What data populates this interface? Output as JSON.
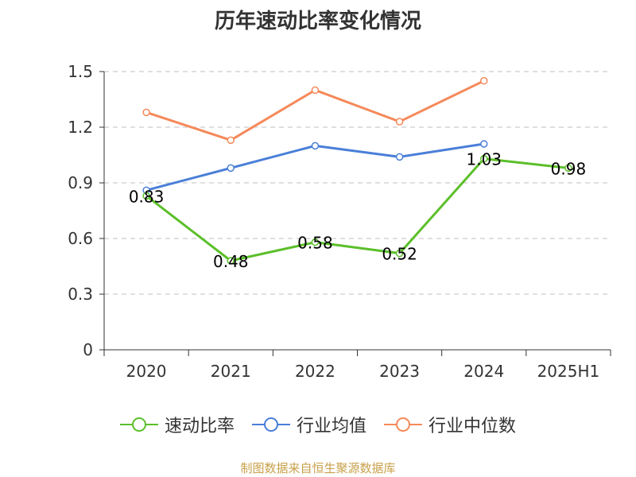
{
  "chart_data": {
    "type": "line",
    "title": "历年速动比率变化情况",
    "categories": [
      "2020",
      "2021",
      "2022",
      "2023",
      "2024",
      "2025H1"
    ],
    "y_ticks": [
      "0",
      "0.3",
      "0.6",
      "0.9",
      "1.2",
      "1.5"
    ],
    "ylim": [
      0,
      1.5
    ],
    "grid": true,
    "legend_position": "bottom",
    "series": [
      {
        "name": "速动比率",
        "color": "#5bbf2a",
        "values": [
          0.83,
          0.48,
          0.58,
          0.52,
          1.03,
          0.98
        ],
        "labels": [
          "0.83",
          "0.48",
          "0.58",
          "0.52",
          "1.03",
          "0.98"
        ]
      },
      {
        "name": "行业均值",
        "color": "#4a7fd8",
        "values": [
          0.86,
          0.98,
          1.1,
          1.04,
          1.11,
          null
        ]
      },
      {
        "name": "行业中位数",
        "color": "#f5895a",
        "values": [
          1.28,
          1.13,
          1.4,
          1.23,
          1.45,
          null
        ]
      }
    ]
  },
  "source_text": "制图数据来自恒生聚源数据库"
}
